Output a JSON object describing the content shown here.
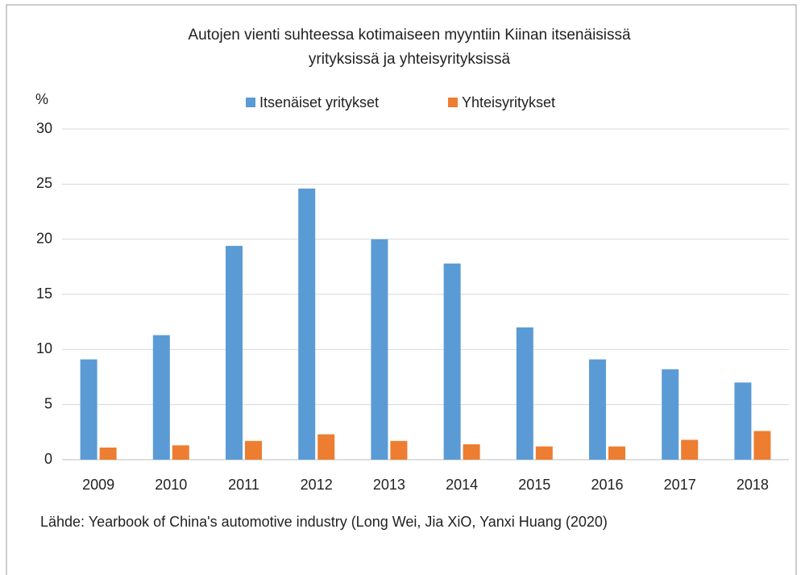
{
  "chart_data": {
    "type": "bar",
    "title": [
      "Autojen vienti suhteessa kotimaiseen myyntiin Kiinan itsenäisissä",
      "yrityksissä ja yhteisyrityksissä"
    ],
    "y_label": "%",
    "source": "Lähde: Yearbook of China's automotive industry (Long Wei, Jia XiO, Yanxi Huang (2020)",
    "categories": [
      "2009",
      "2010",
      "2011",
      "2012",
      "2013",
      "2014",
      "2015",
      "2016",
      "2017",
      "2018"
    ],
    "series": [
      {
        "name": "Itsenäiset yritykset",
        "color": "#5b9bd5",
        "values": [
          9.1,
          11.3,
          19.4,
          24.6,
          20.0,
          17.8,
          12.0,
          9.1,
          8.2,
          7.0
        ]
      },
      {
        "name": "Yhteisyritykset",
        "color": "#ed7d31",
        "values": [
          1.1,
          1.3,
          1.7,
          2.3,
          1.7,
          1.4,
          1.2,
          1.2,
          1.8,
          2.6
        ]
      }
    ],
    "ylim": [
      0,
      30
    ],
    "yticks": [
      0,
      5,
      10,
      15,
      20,
      25,
      30
    ],
    "grid": true,
    "legend": "top"
  }
}
